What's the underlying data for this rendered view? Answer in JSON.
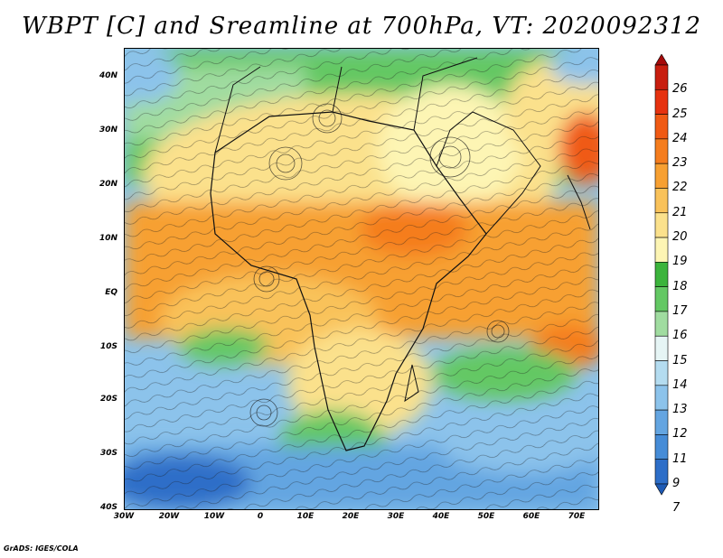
{
  "title": "WBPT [C] and Sreamline at 700hPa, VT: 2020092312",
  "lat_labels": [
    "40N",
    "30N",
    "20N",
    "10N",
    "EQ",
    "10S",
    "20S",
    "30S",
    "40S"
  ],
  "lon_labels": [
    "30W",
    "20W",
    "10W",
    "0",
    "10E",
    "20E",
    "30E",
    "40E",
    "50E",
    "60E",
    "70E"
  ],
  "colorbar": {
    "levels": [
      "26",
      "25",
      "24",
      "23",
      "22",
      "21",
      "20",
      "19",
      "18",
      "17",
      "16",
      "15",
      "14",
      "13",
      "12",
      "11",
      "9",
      "7"
    ],
    "colors": [
      "#a50a0a",
      "#c81e0f",
      "#e6320f",
      "#f05a14",
      "#f57d1e",
      "#f7a032",
      "#f9c25a",
      "#fbe18c",
      "#fdf5b4",
      "#3cb43c",
      "#64c864",
      "#a0dca0",
      "#e6f5f5",
      "#b4dcf0",
      "#8cc3eb",
      "#64a5e1",
      "#468cd7",
      "#2d6ec8",
      "#1e5ab4"
    ]
  },
  "credit": "GrADS: IGES/COLA"
}
